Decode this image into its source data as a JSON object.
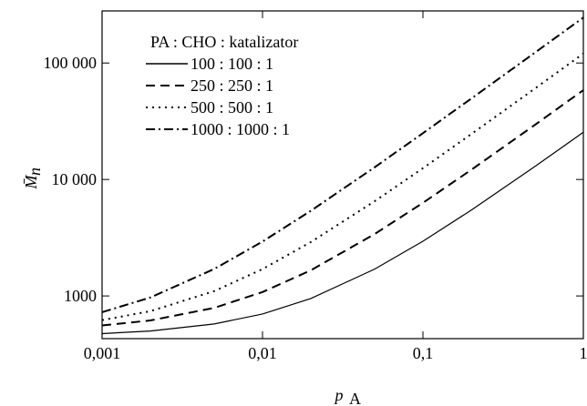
{
  "chart_data": {
    "type": "line",
    "xlabel": {
      "main": "p",
      "sub": "A"
    },
    "ylabel": {
      "main": "M̄",
      "sub": "n"
    },
    "legend_title": "PA : CHO : katalizator",
    "legend": "upper left",
    "log_x": true,
    "log_y": true,
    "x": [
      0.001,
      0.002,
      0.005,
      0.01,
      0.02,
      0.05,
      0.1,
      0.2,
      0.5,
      1
    ],
    "series": [
      {
        "name": "100 : 100 : 1",
        "color": "#000000",
        "dash": "solid",
        "values": [
          475,
          500,
          575,
          700,
          950,
          1700,
          2950,
          5450,
          12950,
          25450
        ]
      },
      {
        "name": "250 : 250 : 1",
        "color": "#000000",
        "dash": "dashed",
        "values": [
          558,
          616,
          790,
          1080,
          1660,
          3400,
          6300,
          12100,
          29500,
          58500
        ]
      },
      {
        "name": "500 : 500 : 1",
        "color": "#000000",
        "dash": "dotted",
        "values": [
          620,
          740,
          1100,
          1700,
          2900,
          6500,
          12500,
          24500,
          60500,
          120500
        ]
      },
      {
        "name": "1000 : 1000 : 1",
        "color": "#000000",
        "dash": "dashdot",
        "values": [
          725,
          970,
          1705,
          2930,
          5380,
          12730,
          24980,
          49480,
          122980,
          245480
        ]
      }
    ],
    "xlim": [
      0.001,
      1
    ],
    "ylim": [
      430,
      280000
    ],
    "xticks": [
      {
        "value": 0.001,
        "label": "0,001"
      },
      {
        "value": 0.01,
        "label": "0,01"
      },
      {
        "value": 0.1,
        "label": "0,1"
      },
      1
    ],
    "yticks": [
      1000,
      {
        "value": 10000,
        "label": "10 000"
      },
      {
        "value": 100000,
        "label": "100 000"
      }
    ]
  }
}
